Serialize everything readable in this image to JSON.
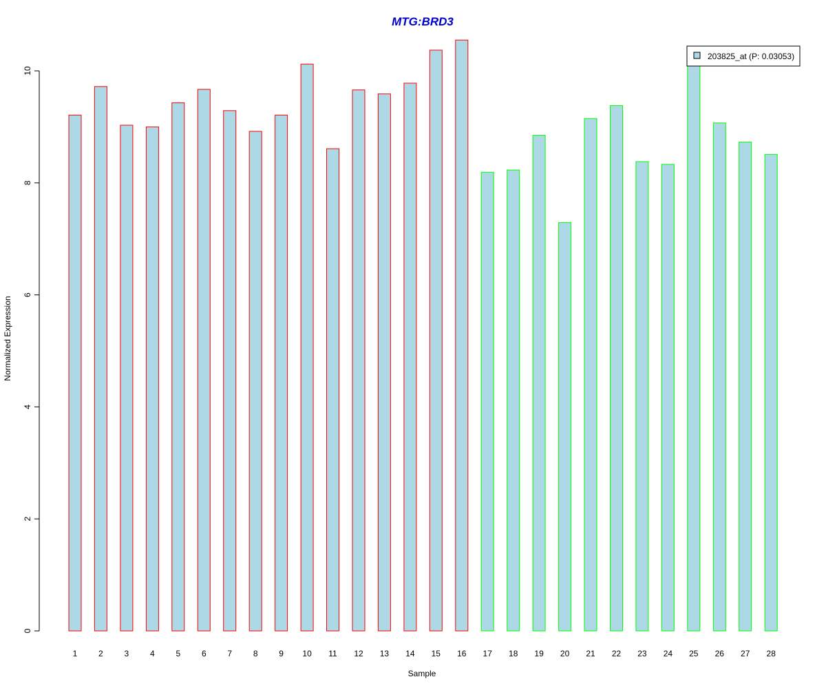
{
  "chart_data": {
    "type": "bar",
    "title": "MTG:BRD3",
    "xlabel": "Sample",
    "ylabel": "Normalized Expression",
    "categories": [
      "1",
      "2",
      "3",
      "4",
      "5",
      "6",
      "7",
      "8",
      "9",
      "10",
      "11",
      "12",
      "13",
      "14",
      "15",
      "16",
      "17",
      "18",
      "19",
      "20",
      "21",
      "22",
      "23",
      "24",
      "25",
      "26",
      "27",
      "28"
    ],
    "values": [
      9.21,
      9.72,
      9.03,
      9.0,
      9.43,
      9.67,
      9.29,
      8.92,
      9.21,
      10.12,
      8.61,
      9.66,
      9.59,
      9.78,
      10.37,
      10.55,
      8.19,
      8.23,
      8.85,
      7.29,
      9.15,
      9.38,
      8.38,
      8.33,
      10.15,
      9.07,
      8.73,
      8.51
    ],
    "bar_groups": [
      "A",
      "A",
      "A",
      "A",
      "A",
      "A",
      "A",
      "A",
      "A",
      "A",
      "A",
      "A",
      "A",
      "A",
      "A",
      "A",
      "B",
      "B",
      "B",
      "B",
      "B",
      "B",
      "B",
      "B",
      "B",
      "B",
      "B",
      "B"
    ],
    "yticks": [
      0,
      2,
      4,
      6,
      8,
      10
    ],
    "ylim": [
      0,
      10.55
    ],
    "grid": false,
    "legend": {
      "position": "top-right",
      "entries": [
        "203825_at (P: 0.03053)"
      ]
    },
    "colors": {
      "bar_fill": "#add8e6",
      "group_A_border": "#ff0000",
      "group_B_border": "#00ff00",
      "title": "#0000cd",
      "axis": "#000000"
    }
  }
}
